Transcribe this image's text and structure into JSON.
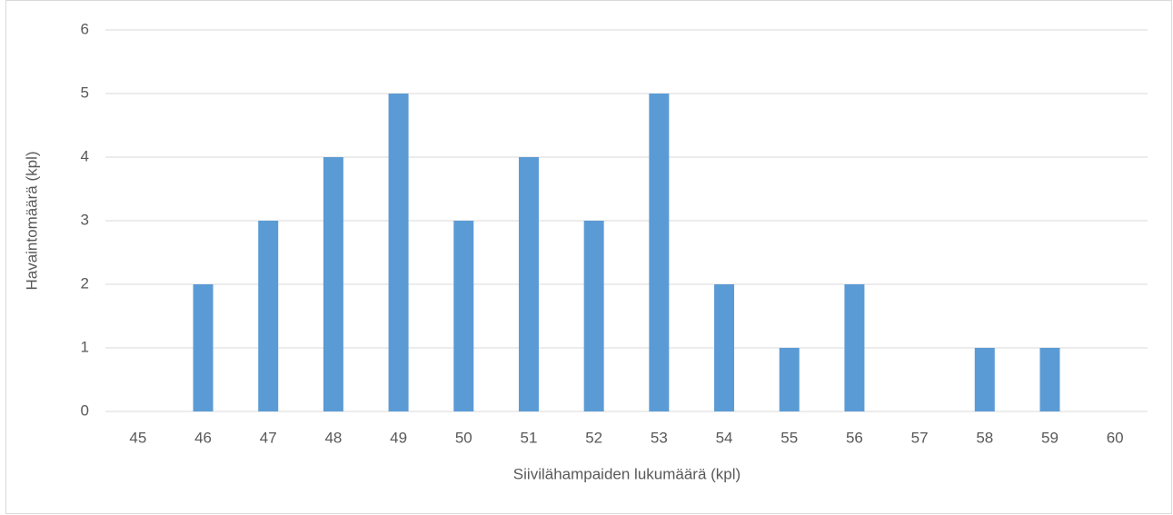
{
  "chart_data": {
    "type": "bar",
    "categories": [
      "45",
      "46",
      "47",
      "48",
      "49",
      "50",
      "51",
      "52",
      "53",
      "54",
      "55",
      "56",
      "57",
      "58",
      "59",
      "60"
    ],
    "values": [
      0,
      2,
      3,
      4,
      5,
      3,
      4,
      3,
      5,
      2,
      1,
      2,
      0,
      1,
      1,
      0
    ],
    "color": "#5b9bd5",
    "x_label": "Siivilähampaiden lukumäärä (kpl)",
    "y_label": "Havaintomäärä (kpl)",
    "ylim": [
      0,
      6
    ],
    "yticks": [
      0,
      1,
      2,
      3,
      4,
      5,
      6
    ],
    "grid": true
  }
}
